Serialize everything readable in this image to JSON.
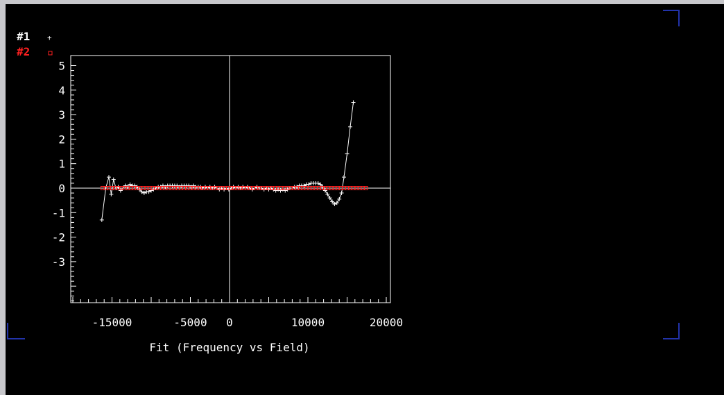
{
  "chart_data": {
    "type": "scatter",
    "title": "",
    "xlabel": "Fit (Frequency vs Field)",
    "ylabel": "",
    "xlim": [
      -20000,
      20000
    ],
    "ylim": [
      -5,
      5
    ],
    "x_ticks": [
      -15000,
      -5000,
      0,
      10000,
      20000
    ],
    "x_tick_labels": [
      "-15000",
      "-5000",
      "0",
      "10000",
      "20000"
    ],
    "y_ticks": [
      5,
      4,
      3,
      2,
      1,
      0,
      -1,
      -2,
      -3
    ],
    "y_tick_labels": [
      "5",
      "4",
      "3",
      "2",
      "1",
      "0",
      "-1",
      "-2",
      "-3"
    ],
    "grid": false,
    "legend_position": "top-left",
    "series": [
      {
        "name": "#1",
        "marker": "plus",
        "color": "#ffffff",
        "connected": true,
        "points": [
          [
            -16300,
            -1.3
          ],
          [
            -15800,
            0.0
          ],
          [
            -15400,
            0.45
          ],
          [
            -15100,
            -0.25
          ],
          [
            -14800,
            0.35
          ],
          [
            -14500,
            0.0
          ],
          [
            -14200,
            0.05
          ],
          [
            -13900,
            -0.1
          ],
          [
            -13600,
            0.0
          ],
          [
            -13300,
            0.1
          ],
          [
            -13000,
            0.05
          ],
          [
            -12700,
            0.15
          ],
          [
            -12400,
            0.1
          ],
          [
            -12100,
            0.1
          ],
          [
            -11800,
            0.05
          ],
          [
            -11500,
            -0.05
          ],
          [
            -11200,
            -0.15
          ],
          [
            -10900,
            -0.2
          ],
          [
            -10600,
            -0.15
          ],
          [
            -10300,
            -0.15
          ],
          [
            -10000,
            -0.1
          ],
          [
            -9700,
            -0.05
          ],
          [
            -9400,
            0.0
          ],
          [
            -9100,
            0.05
          ],
          [
            -8800,
            0.05
          ],
          [
            -8500,
            0.1
          ],
          [
            -8200,
            0.05
          ],
          [
            -7900,
            0.1
          ],
          [
            -7600,
            0.1
          ],
          [
            -7300,
            0.1
          ],
          [
            -7000,
            0.1
          ],
          [
            -6700,
            0.1
          ],
          [
            -6400,
            0.05
          ],
          [
            -6100,
            0.1
          ],
          [
            -5800,
            0.1
          ],
          [
            -5500,
            0.1
          ],
          [
            -5200,
            0.1
          ],
          [
            -4900,
            0.05
          ],
          [
            -4600,
            0.1
          ],
          [
            -4300,
            0.05
          ],
          [
            -4000,
            0.05
          ],
          [
            -3700,
            0.05
          ],
          [
            -3400,
            0.0
          ],
          [
            -3100,
            0.05
          ],
          [
            -2800,
            0.0
          ],
          [
            -2500,
            0.05
          ],
          [
            -2200,
            0.0
          ],
          [
            -1900,
            0.05
          ],
          [
            -1600,
            0.0
          ],
          [
            -1300,
            -0.05
          ],
          [
            -1000,
            0.0
          ],
          [
            -700,
            -0.05
          ],
          [
            -400,
            0.0
          ],
          [
            -100,
            -0.05
          ],
          [
            200,
            0.0
          ],
          [
            500,
            0.05
          ],
          [
            800,
            0.0
          ],
          [
            1100,
            0.05
          ],
          [
            1400,
            0.0
          ],
          [
            1700,
            0.05
          ],
          [
            2000,
            0.0
          ],
          [
            2300,
            0.05
          ],
          [
            2600,
            0.0
          ],
          [
            2900,
            -0.05
          ],
          [
            3200,
            0.0
          ],
          [
            3500,
            0.05
          ],
          [
            3800,
            0.0
          ],
          [
            4100,
            0.0
          ],
          [
            4400,
            -0.05
          ],
          [
            4700,
            0.0
          ],
          [
            5000,
            -0.05
          ],
          [
            5300,
            0.0
          ],
          [
            5600,
            -0.05
          ],
          [
            5900,
            -0.1
          ],
          [
            6200,
            -0.05
          ],
          [
            6500,
            -0.1
          ],
          [
            6800,
            -0.05
          ],
          [
            7100,
            -0.1
          ],
          [
            7400,
            -0.05
          ],
          [
            7700,
            0.0
          ],
          [
            8000,
            0.0
          ],
          [
            8300,
            0.05
          ],
          [
            8600,
            0.05
          ],
          [
            8900,
            0.1
          ],
          [
            9200,
            0.1
          ],
          [
            9500,
            0.1
          ],
          [
            9800,
            0.15
          ],
          [
            10100,
            0.15
          ],
          [
            10400,
            0.2
          ],
          [
            10700,
            0.2
          ],
          [
            11000,
            0.2
          ],
          [
            11300,
            0.2
          ],
          [
            11600,
            0.15
          ],
          [
            11900,
            0.05
          ],
          [
            12200,
            -0.1
          ],
          [
            12500,
            -0.25
          ],
          [
            12800,
            -0.4
          ],
          [
            13100,
            -0.55
          ],
          [
            13400,
            -0.65
          ],
          [
            13700,
            -0.6
          ],
          [
            14000,
            -0.45
          ],
          [
            14300,
            -0.2
          ],
          [
            14600,
            0.45
          ],
          [
            15000,
            1.4
          ],
          [
            15400,
            2.5
          ],
          [
            15800,
            3.5
          ]
        ]
      },
      {
        "name": "#2",
        "marker": "square",
        "color": "#ff2020",
        "connected": false,
        "points": [
          [
            -16200,
            0.0
          ],
          [
            -15800,
            0.0
          ],
          [
            -15400,
            0.0
          ],
          [
            -15000,
            0.0
          ],
          [
            -14600,
            0.0
          ],
          [
            -14200,
            0.0
          ],
          [
            -13800,
            0.0
          ],
          [
            -13400,
            0.0
          ],
          [
            -13000,
            0.0
          ],
          [
            -12600,
            0.0
          ],
          [
            -12200,
            0.0
          ],
          [
            -11800,
            0.0
          ],
          [
            -11400,
            0.0
          ],
          [
            -11000,
            0.0
          ],
          [
            -10600,
            0.0
          ],
          [
            -10200,
            0.0
          ],
          [
            -9800,
            0.0
          ],
          [
            -9400,
            0.0
          ],
          [
            -9000,
            0.0
          ],
          [
            -8600,
            0.0
          ],
          [
            -8200,
            0.0
          ],
          [
            -7800,
            0.0
          ],
          [
            -7400,
            0.0
          ],
          [
            -7000,
            0.0
          ],
          [
            -6600,
            0.0
          ],
          [
            -6200,
            0.0
          ],
          [
            -5800,
            0.0
          ],
          [
            -5400,
            0.0
          ],
          [
            -5000,
            0.0
          ],
          [
            -4600,
            0.0
          ],
          [
            -4200,
            0.0
          ],
          [
            -3800,
            0.0
          ],
          [
            -3400,
            0.0
          ],
          [
            -3000,
            0.0
          ],
          [
            -2600,
            0.0
          ],
          [
            -2200,
            0.0
          ],
          [
            -1800,
            0.0
          ],
          [
            -1400,
            0.0
          ],
          [
            -1000,
            0.0
          ],
          [
            -600,
            0.0
          ],
          [
            -200,
            0.0
          ],
          [
            200,
            0.0
          ],
          [
            600,
            0.0
          ],
          [
            1000,
            0.0
          ],
          [
            1400,
            0.0
          ],
          [
            1800,
            0.0
          ],
          [
            2200,
            0.0
          ],
          [
            2600,
            0.0
          ],
          [
            3000,
            0.0
          ],
          [
            3400,
            0.0
          ],
          [
            3800,
            0.0
          ],
          [
            4200,
            0.0
          ],
          [
            4600,
            0.0
          ],
          [
            5000,
            0.0
          ],
          [
            5400,
            0.0
          ],
          [
            5800,
            0.0
          ],
          [
            6200,
            0.0
          ],
          [
            6600,
            0.0
          ],
          [
            7000,
            0.0
          ],
          [
            7400,
            0.0
          ],
          [
            7800,
            0.0
          ],
          [
            8200,
            0.0
          ],
          [
            8600,
            0.0
          ],
          [
            9000,
            0.0
          ],
          [
            9400,
            0.0
          ],
          [
            9800,
            0.0
          ],
          [
            10200,
            0.0
          ],
          [
            10600,
            0.0
          ],
          [
            11000,
            0.0
          ],
          [
            11400,
            0.0
          ],
          [
            11800,
            0.0
          ],
          [
            12200,
            0.0
          ],
          [
            12600,
            0.0
          ],
          [
            13000,
            0.0
          ],
          [
            13400,
            0.0
          ],
          [
            13800,
            0.0
          ],
          [
            14200,
            0.0
          ],
          [
            14600,
            0.0
          ],
          [
            15000,
            0.0
          ],
          [
            15400,
            0.0
          ],
          [
            15800,
            0.0
          ],
          [
            16200,
            0.0
          ],
          [
            16600,
            0.0
          ],
          [
            17000,
            0.0
          ],
          [
            17400,
            0.0
          ]
        ]
      }
    ]
  },
  "colors": {
    "background": "#000000",
    "axes": "#ffffff",
    "series1": "#ffffff",
    "series2": "#ff2020",
    "window_frame": "#c8c8cc",
    "corner_marks": "#2233aa"
  }
}
